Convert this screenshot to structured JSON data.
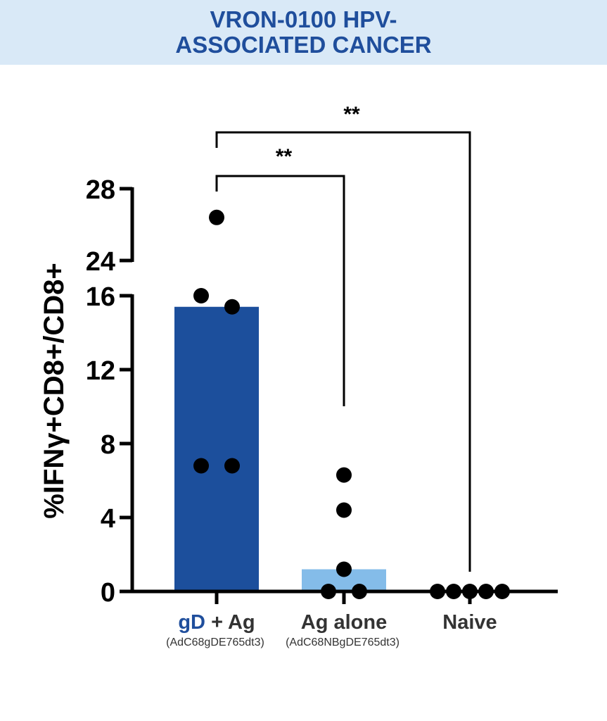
{
  "banner": {
    "line1": "VRON-0100 HPV-",
    "line2": "ASSOCIATED CANCER"
  },
  "chart_data": {
    "type": "bar",
    "ylabel": "%IFNγ+CD8+/CD8+",
    "ylim": [
      0,
      28
    ],
    "axis_break": [
      16,
      24
    ],
    "yticks_lower": [
      0,
      4,
      8,
      12,
      16
    ],
    "yticks_upper": [
      24,
      28
    ],
    "categories": [
      {
        "label_parts": [
          {
            "text": "gD",
            "color": "#1f4e9c"
          },
          {
            "text": " + Ag",
            "color": "#333333"
          }
        ],
        "sublabel": "(AdC68gDE765dt3)"
      },
      {
        "label_parts": [
          {
            "text": "Ag alone",
            "color": "#333333"
          }
        ],
        "sublabel": "(AdC68NBgDE765dt3)"
      },
      {
        "label_parts": [
          {
            "text": "Naive",
            "color": "#333333"
          }
        ],
        "sublabel": ""
      }
    ],
    "values": [
      15.4,
      1.2,
      0
    ],
    "points": [
      [
        26.4,
        16.0,
        15.4,
        6.8,
        6.8
      ],
      [
        6.3,
        4.4,
        1.2,
        0.0,
        0.0
      ],
      [
        0,
        0,
        0,
        0,
        0
      ]
    ],
    "bar_colors": [
      "#1c4f9c",
      "#84bce9",
      "#ffffff"
    ],
    "significance": [
      {
        "from": 0,
        "to": 1,
        "label": "**"
      },
      {
        "from": 0,
        "to": 2,
        "label": "**"
      }
    ]
  }
}
